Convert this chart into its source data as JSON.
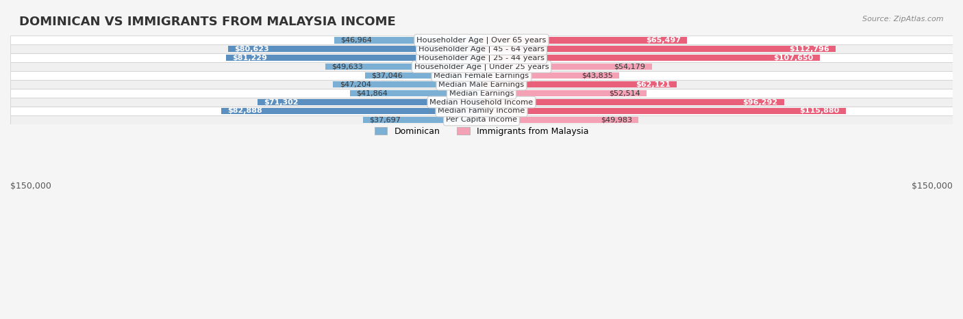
{
  "title": "DOMINICAN VS IMMIGRANTS FROM MALAYSIA INCOME",
  "source": "Source: ZipAtlas.com",
  "categories": [
    "Per Capita Income",
    "Median Family Income",
    "Median Household Income",
    "Median Earnings",
    "Median Male Earnings",
    "Median Female Earnings",
    "Householder Age | Under 25 years",
    "Householder Age | 25 - 44 years",
    "Householder Age | 45 - 64 years",
    "Householder Age | Over 65 years"
  ],
  "dominican": [
    37697,
    82888,
    71302,
    41864,
    47204,
    37046,
    49633,
    81229,
    80623,
    46964
  ],
  "malaysia": [
    49983,
    115880,
    96292,
    52514,
    62121,
    43835,
    54179,
    107650,
    112796,
    65497
  ],
  "dominican_color": "#7bafd4",
  "dominican_color_dark": "#5b8fbf",
  "malaysia_color": "#f4a0b5",
  "malaysia_color_dark": "#e8607a",
  "max_val": 150000,
  "bg_color": "#f5f5f5",
  "row_bg": "#f0f0f0",
  "row_bg_alt": "#ffffff",
  "label_fontsize": 9,
  "title_fontsize": 13,
  "xlabel_left": "$150,000",
  "xlabel_right": "$150,000",
  "legend_dominican": "Dominican",
  "legend_malaysia": "Immigrants from Malaysia"
}
